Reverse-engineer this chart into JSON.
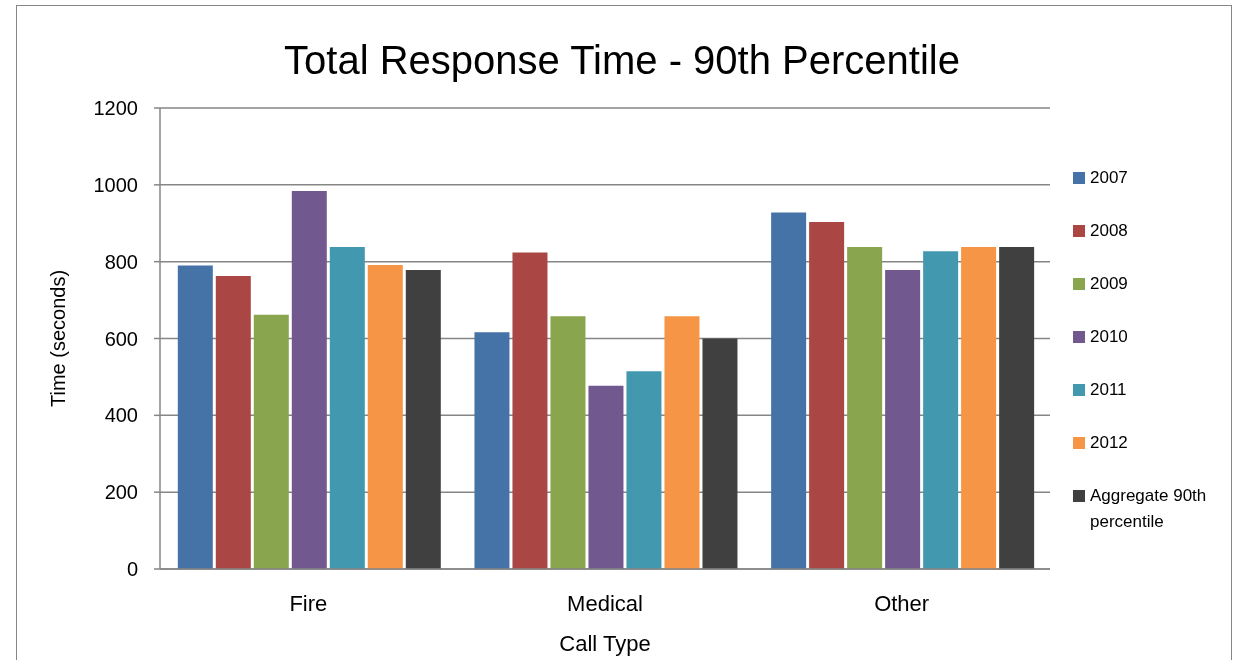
{
  "chart_data": {
    "type": "bar",
    "title": "Total Response Time - 90th Percentile",
    "xlabel": "Call Type",
    "ylabel": "Time (seconds)",
    "categories": [
      "Fire",
      "Medical",
      "Other"
    ],
    "series": [
      {
        "name": "2007",
        "color": "#4572a7",
        "values": [
          790,
          616,
          928
        ]
      },
      {
        "name": "2008",
        "color": "#aa4643",
        "values": [
          763,
          824,
          903
        ]
      },
      {
        "name": "2009",
        "color": "#89a54e",
        "values": [
          662,
          658,
          838
        ]
      },
      {
        "name": "2010",
        "color": "#71588f",
        "values": [
          984,
          477,
          778
        ]
      },
      {
        "name": "2011",
        "color": "#4198af",
        "values": [
          838,
          515,
          827
        ]
      },
      {
        "name": "2012",
        "color": "#f69546",
        "values": [
          791,
          658,
          838
        ]
      },
      {
        "name": "Aggregate 90th percentile",
        "color": "#404040",
        "values": [
          778,
          600,
          838
        ]
      }
    ],
    "ylim": [
      0,
      1200
    ],
    "yticks": [
      0,
      200,
      400,
      600,
      800,
      1000,
      1200
    ],
    "grid": "y",
    "legend": "right"
  }
}
